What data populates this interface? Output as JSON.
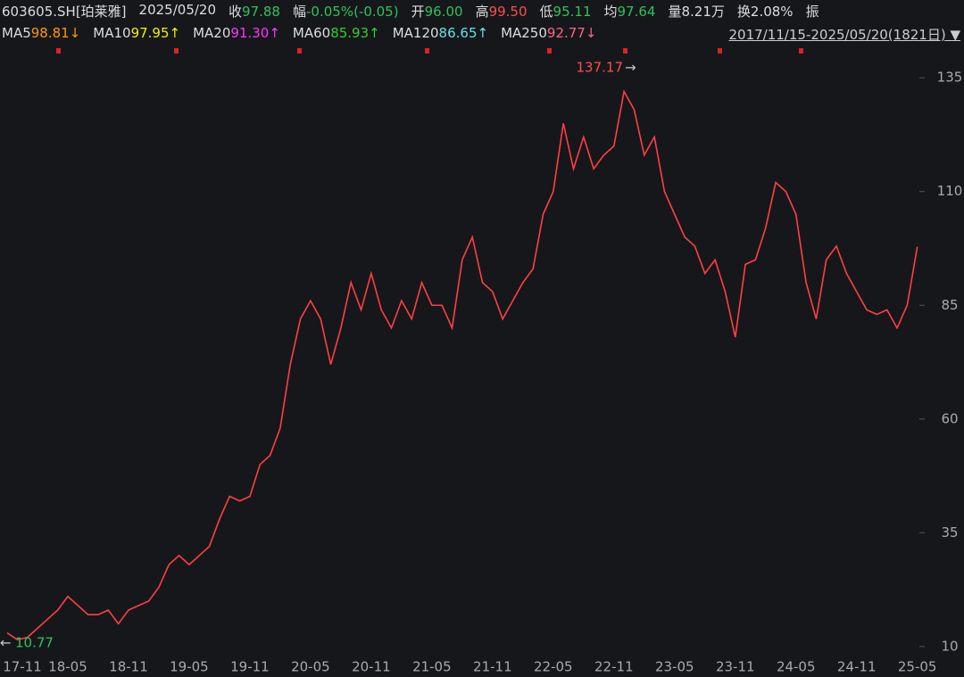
{
  "header": {
    "items": [
      {
        "label": "603605.SH[珀莱雅]",
        "value": "",
        "color": "#dddddd"
      },
      {
        "label": "2025/05/20",
        "value": "",
        "color": "#dddddd"
      },
      {
        "label": "收",
        "value": "97.88",
        "color": "#2fc25b"
      },
      {
        "label": "幅",
        "value": "-0.05%(-0.05)",
        "color": "#2fc25b"
      },
      {
        "label": "开",
        "value": "96.00",
        "color": "#2fc25b"
      },
      {
        "label": "高",
        "value": "99.50",
        "color": "#ff4d4d"
      },
      {
        "label": "低",
        "value": "95.11",
        "color": "#2fc25b"
      },
      {
        "label": "均",
        "value": "97.64",
        "color": "#2fc25b"
      },
      {
        "label": "量",
        "value": "8.21万",
        "color": "#dddddd"
      },
      {
        "label": "换",
        "value": "2.08%",
        "color": "#dddddd"
      },
      {
        "label": "振",
        "value": "",
        "color": "#dddddd"
      }
    ],
    "ma": [
      {
        "label": "MA5",
        "value": "98.81↓",
        "color": "#ff9900"
      },
      {
        "label": "MA10",
        "value": "97.95↑",
        "color": "#f0f000"
      },
      {
        "label": "MA20",
        "value": "91.30↑",
        "color": "#ff33ff"
      },
      {
        "label": "MA60",
        "value": "85.93↑",
        "color": "#33cc33"
      },
      {
        "label": "MA120",
        "value": "86.65↑",
        "color": "#66e0e0"
      },
      {
        "label": "MA250",
        "value": "92.77↓",
        "color": "#ff6680"
      }
    ],
    "range": "2017/11/15-2025/05/20(1821日)"
  },
  "chart_data": {
    "type": "line",
    "color": "#ff4040",
    "categories": [
      "17-11",
      null,
      null,
      null,
      null,
      null,
      "18-05",
      null,
      null,
      null,
      null,
      null,
      "18-11",
      null,
      null,
      null,
      null,
      null,
      "19-05",
      null,
      null,
      null,
      null,
      null,
      "19-11",
      null,
      null,
      null,
      null,
      null,
      "20-05",
      null,
      null,
      null,
      null,
      null,
      "20-11",
      null,
      null,
      null,
      null,
      null,
      "21-05",
      null,
      null,
      null,
      null,
      null,
      "21-11",
      null,
      null,
      null,
      null,
      null,
      "22-05",
      null,
      null,
      null,
      null,
      null,
      "22-11",
      null,
      null,
      null,
      null,
      null,
      "23-05",
      null,
      null,
      null,
      null,
      null,
      "23-11",
      null,
      null,
      null,
      null,
      null,
      "24-05",
      null,
      null,
      null,
      null,
      null,
      "24-11",
      null,
      null,
      null,
      null,
      null,
      "25-05"
    ],
    "values": [
      13,
      11.5,
      12,
      14,
      16,
      18,
      21,
      19,
      17,
      17,
      18,
      15,
      18,
      19,
      20,
      23,
      28,
      30,
      28,
      30,
      32,
      38,
      43,
      42,
      43,
      50,
      52,
      58,
      72,
      82,
      86,
      82,
      72,
      80,
      90,
      84,
      92,
      84,
      80,
      86,
      82,
      90,
      85,
      85,
      80,
      95,
      100,
      90,
      88,
      82,
      86,
      90,
      93,
      105,
      110,
      125,
      115,
      122,
      115,
      118,
      120,
      132,
      128,
      118,
      122,
      110,
      105,
      100,
      98,
      92,
      95,
      88,
      78,
      94,
      95,
      102,
      112,
      110,
      105,
      90,
      82,
      95,
      98,
      92,
      88,
      84,
      83,
      84,
      80,
      85,
      97.88
    ],
    "ylim": [
      8,
      142.3
    ],
    "yticks": [
      10,
      35,
      60,
      85,
      110,
      135
    ],
    "high": 137.17,
    "low": 10.77
  }
}
